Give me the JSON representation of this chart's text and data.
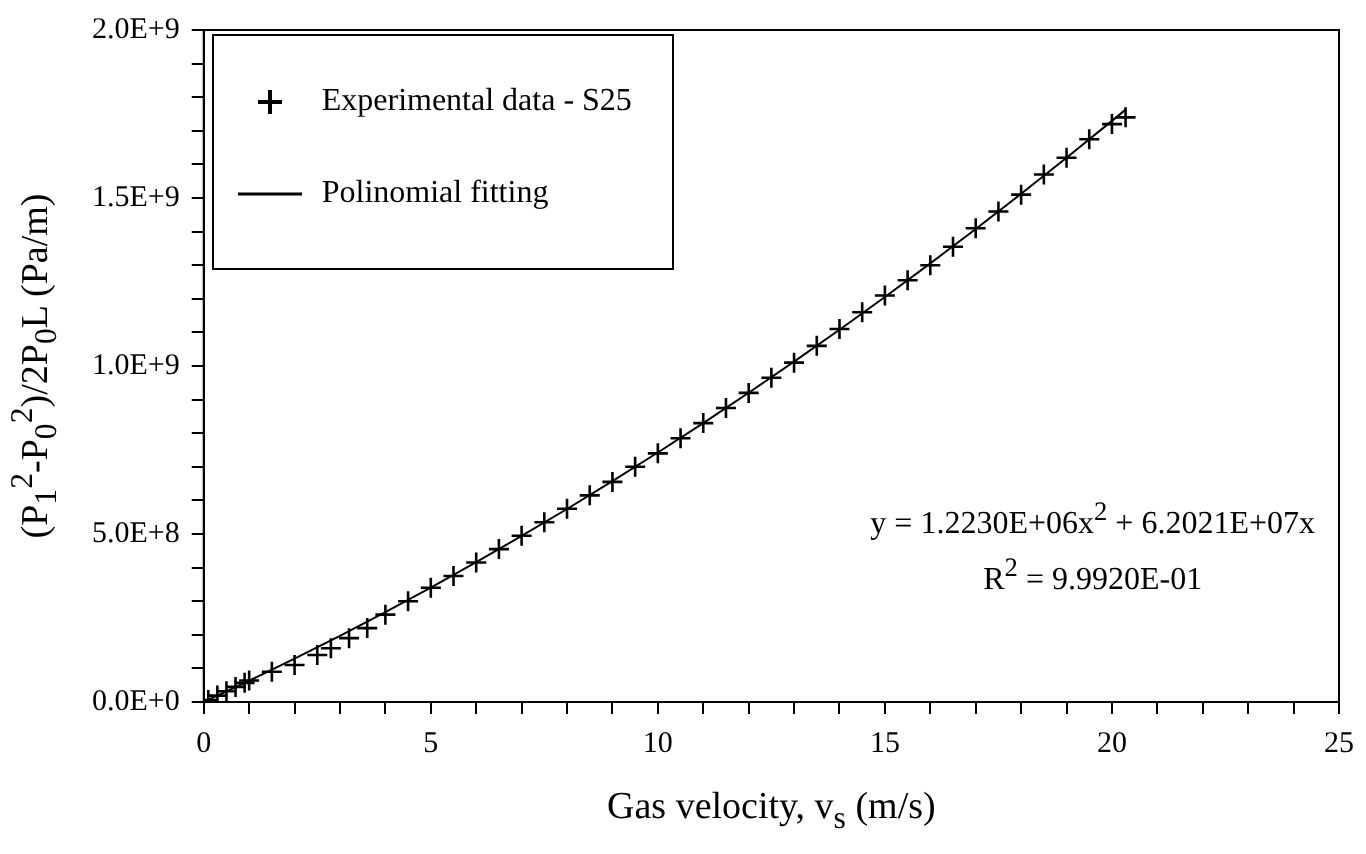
{
  "chart_data": {
    "type": "scatter",
    "xlabel": "Gas velocity, v$_{s}$ (m/s)",
    "ylabel": "(P$_{1}$$^{2}$-P$_{0}$$^{2}$)/2P$_{0}$L (Pa/m)",
    "xlim": [
      0,
      25
    ],
    "ylim": [
      0,
      2000000000
    ],
    "xticks": [
      0,
      {
        "value": 1,
        "label": null
      },
      {
        "value": 2,
        "label": null
      },
      {
        "value": 3,
        "label": null
      },
      {
        "value": 4,
        "label": null
      },
      5,
      {
        "value": 6,
        "label": null
      },
      {
        "value": 7,
        "label": null
      },
      {
        "value": 8,
        "label": null
      },
      {
        "value": 9,
        "label": null
      },
      10,
      {
        "value": 11,
        "label": null
      },
      {
        "value": 12,
        "label": null
      },
      {
        "value": 13,
        "label": null
      },
      {
        "value": 14,
        "label": null
      },
      15,
      {
        "value": 16,
        "label": null
      },
      {
        "value": 17,
        "label": null
      },
      {
        "value": 18,
        "label": null
      },
      {
        "value": 19,
        "label": null
      },
      20,
      {
        "value": 21,
        "label": null
      },
      {
        "value": 22,
        "label": null
      },
      {
        "value": 23,
        "label": null
      },
      {
        "value": 24,
        "label": null
      },
      25
    ],
    "yticks": [
      {
        "value": 0,
        "label": "0.0E+0"
      },
      {
        "value": 100000000,
        "label": null
      },
      {
        "value": 200000000,
        "label": null
      },
      {
        "value": 300000000,
        "label": null
      },
      {
        "value": 400000000,
        "label": null
      },
      {
        "value": 500000000,
        "label": "5.0E+8"
      },
      {
        "value": 600000000,
        "label": null
      },
      {
        "value": 700000000,
        "label": null
      },
      {
        "value": 800000000,
        "label": null
      },
      {
        "value": 900000000,
        "label": null
      },
      {
        "value": 1000000000,
        "label": "1.0E+9"
      },
      {
        "value": 1100000000,
        "label": null
      },
      {
        "value": 1200000000,
        "label": null
      },
      {
        "value": 1300000000,
        "label": null
      },
      {
        "value": 1400000000,
        "label": null
      },
      {
        "value": 1500000000,
        "label": "1.5E+9"
      },
      {
        "value": 1600000000,
        "label": null
      },
      {
        "value": 1700000000,
        "label": null
      },
      {
        "value": 1800000000,
        "label": null
      },
      {
        "value": 1900000000,
        "label": null
      },
      {
        "value": 2000000000,
        "label": "2.0E+9"
      }
    ],
    "grid": false,
    "legend": "top left",
    "annotations": [
      "y = 1.2230E+06x$^{2}$ + 6.2021E+07x",
      "R$^{2}$ = 9.9920E-01"
    ],
    "series": [
      {
        "name": "Experimental data - S25",
        "type": "scatter",
        "marker": "cross",
        "color": "#000000",
        "x": [
          0.1,
          0.3,
          0.5,
          0.7,
          0.9,
          1.0,
          1.5,
          2.0,
          2.5,
          2.8,
          3.2,
          3.6,
          4.0,
          4.5,
          5.0,
          5.5,
          6.0,
          6.5,
          7.0,
          7.5,
          8.0,
          8.5,
          9.0,
          9.5,
          10.0,
          10.5,
          11.0,
          11.5,
          12.0,
          12.5,
          13.0,
          13.5,
          14.0,
          14.5,
          15.0,
          15.5,
          16.0,
          16.5,
          17.0,
          17.5,
          18.0,
          18.5,
          19.0,
          19.5,
          20.0,
          20.3
        ],
        "values": [
          6000000,
          19000000,
          32000000,
          45000000,
          57000000,
          64000000,
          90000000,
          110000000,
          140000000,
          160000000,
          190000000,
          220000000,
          260000000,
          300000000,
          340000000,
          375000000,
          415000000,
          455000000,
          495000000,
          535000000,
          575000000,
          615000000,
          655000000,
          700000000,
          740000000,
          785000000,
          830000000,
          875000000,
          920000000,
          965000000,
          1010000000,
          1060000000,
          1110000000,
          1160000000,
          1210000000,
          1255000000,
          1300000000,
          1355000000,
          1410000000,
          1460000000,
          1510000000,
          1570000000,
          1620000000,
          1675000000,
          1720000000,
          1740000000
        ]
      },
      {
        "name": "Polinomial fitting",
        "type": "line",
        "marker": "none",
        "line_style": "solid",
        "color": "#000000",
        "x": [
          0,
          1,
          2,
          3,
          4,
          5,
          6,
          7,
          8,
          9,
          10,
          11,
          12,
          13,
          14,
          15,
          16,
          17,
          18,
          19,
          20,
          20.3
        ],
        "values": [
          0,
          63200000,
          128900000,
          197100000,
          267700000,
          340700000,
          416100000,
          494100000,
          574400000,
          657200000,
          742500000,
          830200000,
          920400000,
          1013000000,
          1108000000,
          1205500000,
          1305400000,
          1407800000,
          1512600000,
          1619900000,
          1729600000,
          1763000000
        ]
      }
    ]
  }
}
